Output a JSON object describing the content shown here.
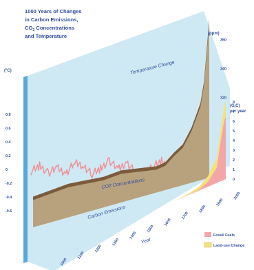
{
  "title_lines": [
    "1000 Years of Changes",
    "in Carbon Emissions,",
    "CO",
    "2",
    " Concentrations",
    "and Temperature"
  ],
  "temp_unit": "(°C)",
  "co2_unit": "(ppm)",
  "carbon_unit_line1": "(G",
  "carbon_unit_sub": "t",
  "carbon_unit_line1_end": "C)",
  "carbon_unit_line2": "per year",
  "panel_labels": {
    "temperature": "Temperature Change",
    "co2": "CO2 Concentrations",
    "carbon": "Carbon Emissions"
  },
  "x_axis_label": "Year",
  "legend": {
    "fossil": "Fossil Fuels",
    "landuse": "Land-use Change"
  },
  "colors": {
    "temp_panel": "#cfe9f4",
    "temp_edge": "#5aa8d8",
    "temp_line": "#ef8f93",
    "co2_fill": "#b8a27e",
    "co2_top": "#7b5b3c",
    "carbon_fossil": "#f2a6aa",
    "carbon_landuse": "#f3e27a",
    "axis_text": "#2f4e9e"
  },
  "chart_data": [
    {
      "type": "line",
      "name_key": "temperature",
      "title": "Temperature Change",
      "ylabel": "(°C)",
      "y_ticks": [
        "0.8",
        "0.6",
        "0.4",
        "0.2",
        "0",
        "-0.2",
        "-0.4",
        "-0.6"
      ],
      "ylim": [
        -0.6,
        0.8
      ],
      "x": [
        1000,
        1050,
        1100,
        1150,
        1200,
        1250,
        1300,
        1350,
        1400,
        1450,
        1500,
        1550,
        1600,
        1650,
        1700,
        1750,
        1800,
        1850,
        1900,
        1950,
        1990,
        2000
      ],
      "y": [
        -0.05,
        0.05,
        -0.1,
        0.0,
        -0.12,
        0.08,
        0.02,
        -0.15,
        -0.05,
        0.1,
        -0.08,
        0.05,
        -0.15,
        -0.2,
        -0.05,
        0.05,
        -0.1,
        -0.05,
        -0.05,
        0.2,
        0.4,
        0.75
      ]
    },
    {
      "type": "area",
      "title": "CO2 Concentrations",
      "ylabel": "(ppm)",
      "y_ticks": [
        "360",
        "340",
        "320"
      ],
      "x": [
        1000,
        1100,
        1200,
        1300,
        1400,
        1500,
        1600,
        1700,
        1750,
        1800,
        1850,
        1900,
        1950,
        1970,
        1990,
        2000
      ],
      "y": [
        280,
        281,
        282,
        281,
        280,
        281,
        279,
        277,
        278,
        283,
        287,
        297,
        312,
        326,
        354,
        368
      ]
    },
    {
      "type": "area",
      "title": "Carbon Emissions",
      "ylabel": "(GtC) per year",
      "y_ticks": [
        "8",
        "7",
        "6",
        "5",
        "4",
        "3",
        "2",
        "1",
        "0"
      ],
      "ylim": [
        0,
        8
      ],
      "x": [
        1000,
        1700,
        1750,
        1800,
        1850,
        1900,
        1950,
        1970,
        1990,
        2000
      ],
      "series": [
        {
          "name": "Fossil Fuels",
          "values": [
            0,
            0,
            0,
            0.02,
            0.1,
            0.5,
            1.6,
            4.0,
            6.0,
            6.5
          ]
        },
        {
          "name": "Land-use Change",
          "values": [
            0,
            0,
            0.05,
            0.15,
            0.3,
            0.6,
            1.0,
            1.2,
            1.5,
            1.6
          ]
        }
      ],
      "x_ticks": [
        "1000",
        "1100",
        "1200",
        "1300",
        "1400",
        "1500",
        "1600",
        "1700",
        "1800",
        "1900",
        "2000"
      ],
      "xlabel": "Year"
    }
  ]
}
